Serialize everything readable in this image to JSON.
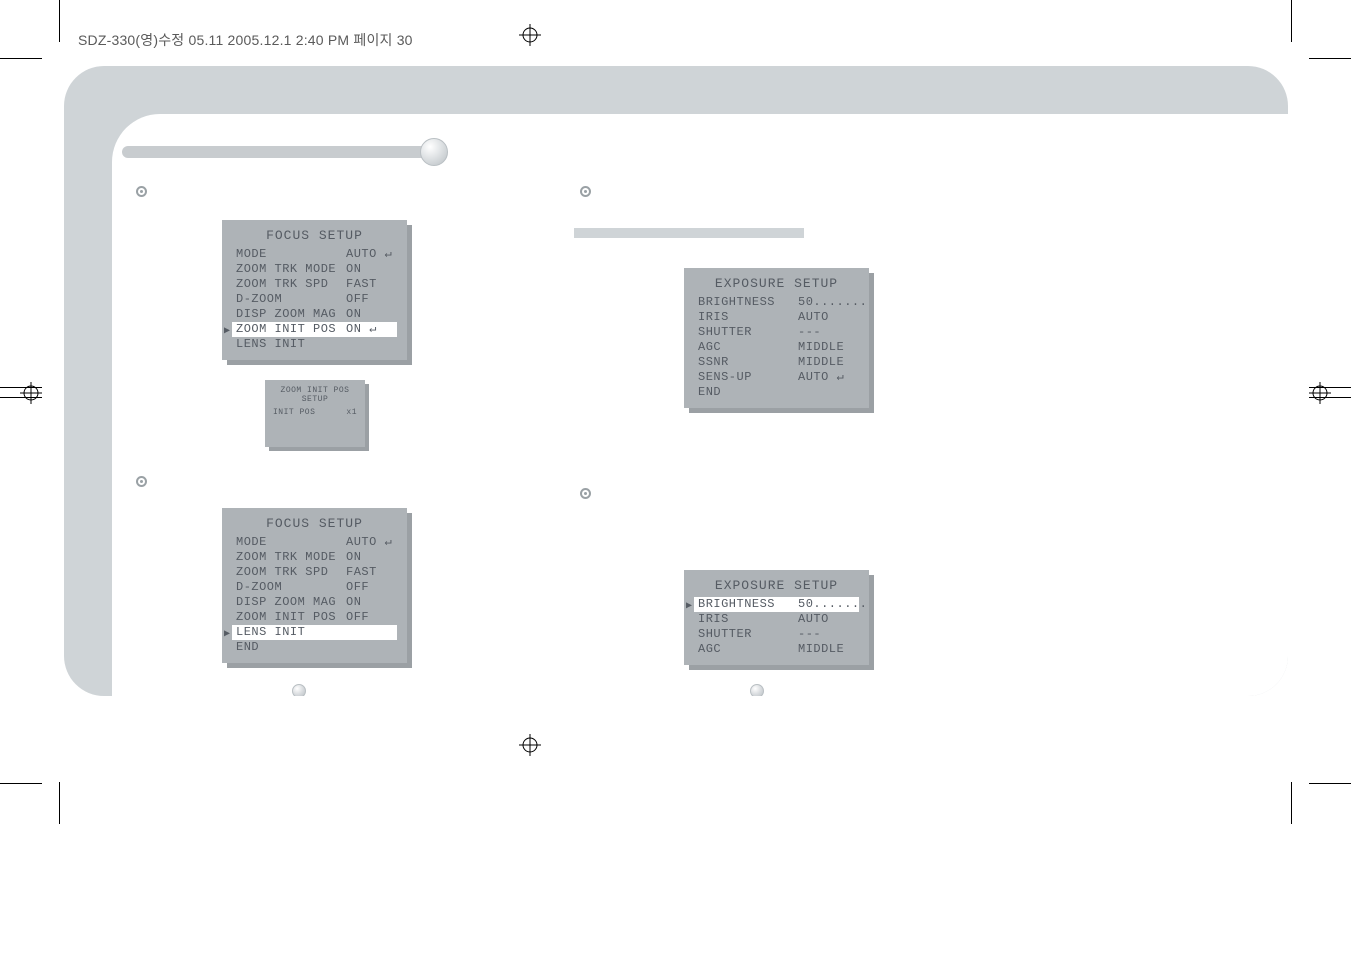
{
  "header": "SDZ-330(영)수정 05.11  2005.12.1  2:40 PM  페이지 30",
  "colors": {
    "frame_bg": "#cfd4d7",
    "panel_bg": "#aeb3b7",
    "panel_shadow": "#9ba0a4",
    "text": "#555b63",
    "page_bg": "#ffffff"
  },
  "focus_setup_1": {
    "title": "FOCUS SETUP",
    "rows": [
      {
        "label": "MODE",
        "value": "AUTO ↵",
        "selected": false
      },
      {
        "label": "ZOOM TRK MODE",
        "value": "ON",
        "selected": false
      },
      {
        "label": "ZOOM TRK SPD",
        "value": "FAST",
        "selected": false
      },
      {
        "label": "D-ZOOM",
        "value": "OFF",
        "selected": false
      },
      {
        "label": "DISP ZOOM MAG",
        "value": "ON",
        "selected": false
      },
      {
        "label": "ZOOM INIT POS",
        "value": "ON ↵",
        "selected": true
      },
      {
        "label": "LENS INIT",
        "value": "",
        "selected": false
      }
    ]
  },
  "zoom_init_sub": {
    "title": "ZOOM INIT POS SETUP",
    "row": {
      "label": "INIT POS",
      "value": "x1"
    }
  },
  "focus_setup_2": {
    "title": "FOCUS SETUP",
    "rows": [
      {
        "label": "MODE",
        "value": "AUTO ↵",
        "selected": false
      },
      {
        "label": "ZOOM TRK MODE",
        "value": "ON",
        "selected": false
      },
      {
        "label": "ZOOM TRK SPD",
        "value": "FAST",
        "selected": false
      },
      {
        "label": "D-ZOOM",
        "value": "OFF",
        "selected": false
      },
      {
        "label": "DISP ZOOM MAG",
        "value": "ON",
        "selected": false
      },
      {
        "label": "ZOOM INIT POS",
        "value": "OFF",
        "selected": false
      },
      {
        "label": "LENS INIT",
        "value": "",
        "selected": true
      },
      {
        "label": "END",
        "value": "",
        "selected": false
      }
    ]
  },
  "exposure_setup_1": {
    "title": "EXPOSURE SETUP",
    "rows": [
      {
        "label": "BRIGHTNESS",
        "value": "50.......",
        "selected": false
      },
      {
        "label": "IRIS",
        "value": "AUTO",
        "selected": false
      },
      {
        "label": "SHUTTER",
        "value": "---",
        "selected": false
      },
      {
        "label": "AGC",
        "value": "MIDDLE",
        "selected": false
      },
      {
        "label": "SSNR",
        "value": "MIDDLE",
        "selected": false
      },
      {
        "label": "SENS-UP",
        "value": "AUTO ↵",
        "selected": false
      },
      {
        "label": "END",
        "value": "",
        "selected": false
      }
    ]
  },
  "exposure_setup_2": {
    "title": "EXPOSURE SETUP",
    "rows": [
      {
        "label": "BRIGHTNESS",
        "value": "50.......",
        "selected": true
      },
      {
        "label": "IRIS",
        "value": "AUTO",
        "selected": false
      },
      {
        "label": "SHUTTER",
        "value": "---",
        "selected": false
      },
      {
        "label": "AGC",
        "value": "MIDDLE",
        "selected": false
      }
    ]
  }
}
